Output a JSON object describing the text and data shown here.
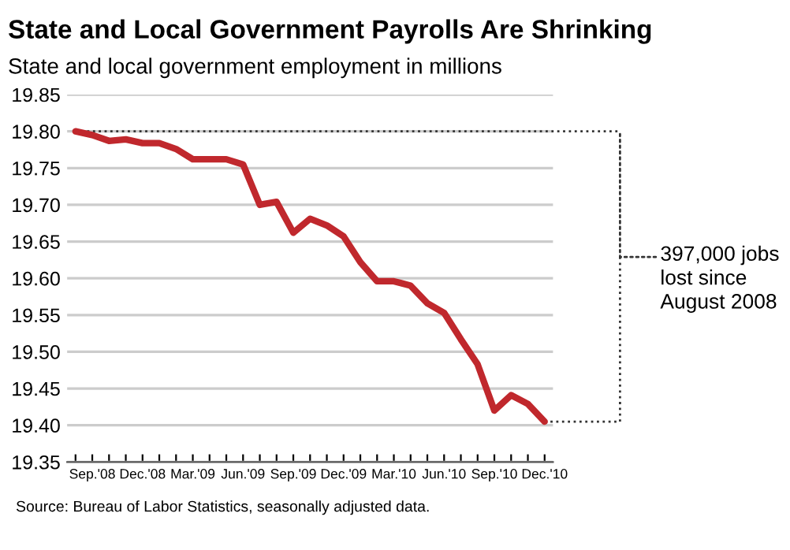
{
  "chart_data": {
    "type": "line",
    "title": "State and Local Government Payrolls Are Shrinking",
    "subtitle": "State and local government employment in millions",
    "categories": [
      null,
      "Sep.'08",
      null,
      null,
      "Dec.'08",
      null,
      null,
      "Mar.'09",
      null,
      null,
      "Jun.'09",
      null,
      null,
      "Sep.'09",
      null,
      null,
      "Dec.'09",
      null,
      null,
      "Mar.'10",
      null,
      null,
      "Jun.'10",
      null,
      null,
      "Sep.'10",
      null,
      null,
      "Dec.'10"
    ],
    "series": [
      {
        "color": "#c0282d",
        "values": [
          19.8,
          19.795,
          19.787,
          19.789,
          19.784,
          19.784,
          19.776,
          19.762,
          19.762,
          19.762,
          19.755,
          19.7,
          19.704,
          19.662,
          19.681,
          19.672,
          19.657,
          19.622,
          19.596,
          19.596,
          19.59,
          19.566,
          19.553,
          19.517,
          19.483,
          19.42,
          19.441,
          19.429,
          19.405
        ]
      }
    ],
    "ylim": [
      19.35,
      19.85
    ],
    "yticks": [
      19.35,
      {
        "value": 19.4,
        "label": "19.40"
      },
      19.45,
      {
        "value": 19.5,
        "label": "19.50"
      },
      19.55,
      {
        "value": 19.6,
        "label": "19.60"
      },
      19.65,
      {
        "value": 19.7,
        "label": "19.70"
      },
      19.75,
      {
        "value": 19.8,
        "label": "19.80"
      },
      19.85
    ],
    "ref_lines": [
      {
        "axis": "y",
        "value": 19.8,
        "color": "#333333",
        "line_style": "dotted"
      }
    ],
    "grid": "y",
    "legend": false,
    "marker": "none",
    "line_style": "solid",
    "annotations": [
      "397,000 jobs lost since August 2008",
      "Source: Bureau of Labor Statistics, seasonally adjusted data."
    ]
  }
}
